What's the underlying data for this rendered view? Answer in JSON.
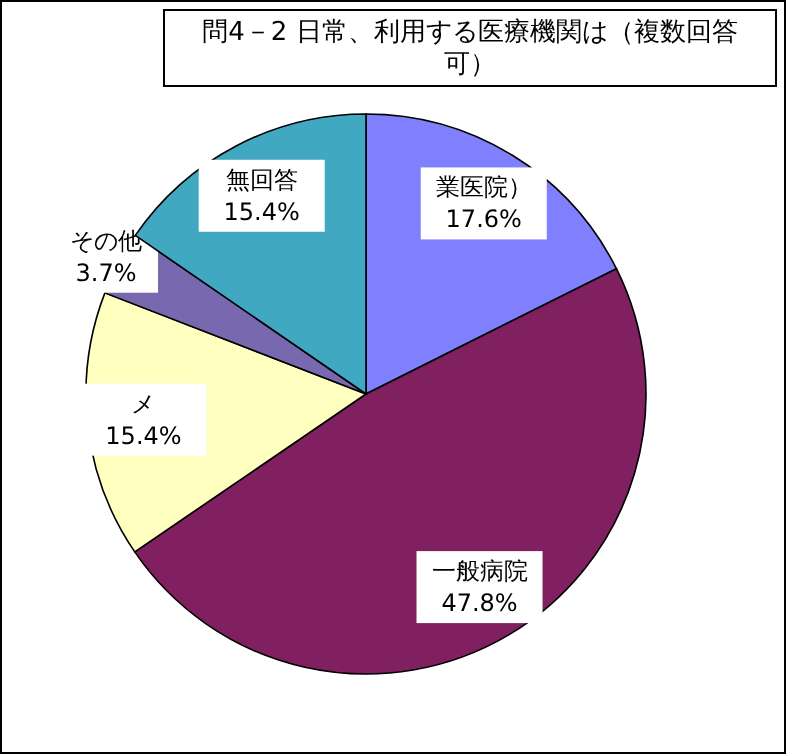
{
  "chart_data": {
    "type": "pie",
    "title": "問4－2 日常、利用する医療機関は（複数回答可）",
    "categories": [
      "業医院）",
      "一般病院",
      "メ",
      "その他",
      "無回答"
    ],
    "values": [
      17.6,
      47.8,
      15.4,
      3.7,
      15.4
    ],
    "colors": [
      "#8080ff",
      "#802060",
      "#ffffc0",
      "#7868b0",
      "#40a8c0"
    ],
    "value_labels": [
      "17.6%",
      "47.8%",
      "15.4%",
      "3.7%",
      "15.4%"
    ]
  }
}
